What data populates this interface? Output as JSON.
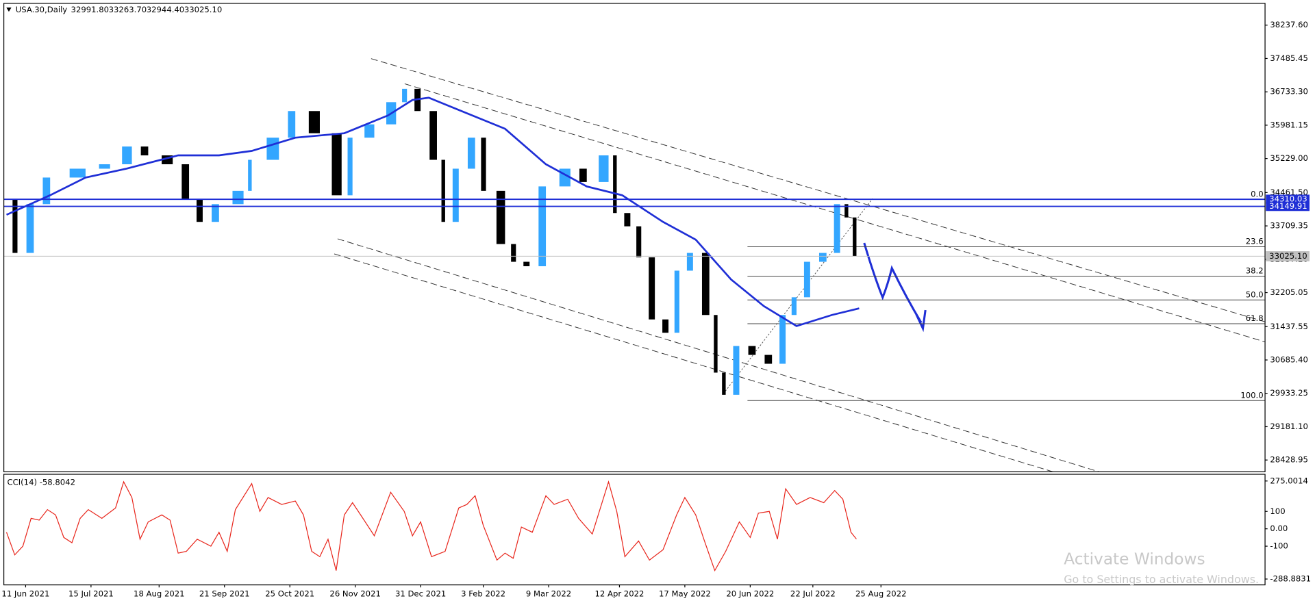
{
  "header": {
    "symbol": "USA.30,Daily",
    "open": "32991.80",
    "high": "33263.70",
    "low": "32944.40",
    "close": "33025.10"
  },
  "chart_data": {
    "type": "candlestick",
    "xlim": [
      -1,
      462
    ],
    "ylim": [
      28164,
      38729
    ],
    "xticks": [
      {
        "value": 7,
        "label": "11 Jun 2021"
      },
      {
        "value": 31,
        "label": "15 Jul 2021"
      },
      {
        "value": 56,
        "label": "18 Aug 2021"
      },
      {
        "value": 80,
        "label": "21 Sep 2021"
      },
      {
        "value": 104,
        "label": "25 Oct 2021"
      },
      {
        "value": 128,
        "label": "26 Nov 2021"
      },
      {
        "value": 152,
        "label": "31 Dec 2021"
      },
      {
        "value": 175,
        "label": "3 Feb 2022"
      },
      {
        "value": 199,
        "label": "9 Mar 2022"
      },
      {
        "value": 225,
        "label": "12 Apr 2022"
      },
      {
        "value": 249,
        "label": "17 May 2022"
      },
      {
        "value": 273,
        "label": "20 Jun 2022"
      },
      {
        "value": 296,
        "label": "22 Jul 2022"
      },
      {
        "value": 321,
        "label": "25 Aug 2022"
      }
    ],
    "yticks": [
      {
        "value": 38237.6,
        "label": "38237.60"
      },
      {
        "value": 37485.45,
        "label": "37485.45"
      },
      {
        "value": 36733.3,
        "label": "36733.30"
      },
      {
        "value": 35981.15,
        "label": "35981.15"
      },
      {
        "value": 35229,
        "label": "35229.00"
      },
      {
        "value": 34461.5,
        "label": "34461.50"
      },
      {
        "value": 33709.35,
        "label": "33709.35"
      },
      {
        "value": 32957.2,
        "label": "32957.20"
      },
      {
        "value": 32205.05,
        "label": "32205.05"
      },
      {
        "value": 31437.55,
        "label": "31437.55"
      },
      {
        "value": 30685.4,
        "label": "30685.40"
      },
      {
        "value": 29933.25,
        "label": "29933.25"
      },
      {
        "value": 29181.1,
        "label": "29181.10"
      },
      {
        "value": 28428.95,
        "label": "28428.95"
      }
    ],
    "grid": true,
    "up_color": "#33a6ff",
    "down_color": "#000000",
    "x": [
      0,
      4,
      10,
      16,
      29,
      38,
      46,
      52,
      61,
      67,
      72,
      78,
      87,
      90,
      100,
      106,
      115,
      123,
      127,
      135,
      143,
      147,
      152,
      158,
      161,
      166,
      172,
      176,
      183,
      187,
      192,
      198,
      207,
      213,
      221,
      224,
      229,
      233,
      238,
      243,
      247,
      252,
      258,
      261,
      264,
      269,
      275,
      281,
      286,
      290,
      295,
      301,
      306,
      309,
      312
    ],
    "close": [
      34300,
      33100,
      34200,
      34800,
      35000,
      35100,
      35500,
      35300,
      35100,
      34300,
      33800,
      34200,
      34500,
      35200,
      35700,
      36300,
      35800,
      34400,
      35700,
      36000,
      36500,
      36800,
      36300,
      35200,
      33800,
      35000,
      35700,
      34500,
      33300,
      32900,
      32800,
      34600,
      35000,
      34700,
      35300,
      34000,
      33700,
      33000,
      31600,
      31300,
      32700,
      33100,
      31700,
      30400,
      29900,
      31000,
      30800,
      30600,
      31700,
      32100,
      32900,
      33100,
      34200,
      33900,
      33025.1
    ],
    "ma": {
      "color": "#1f2fd6",
      "x": [
        0,
        16,
        29,
        44,
        63,
        78,
        90,
        106,
        124,
        140,
        149,
        155,
        167,
        183,
        198,
        213,
        226,
        241,
        253,
        266,
        278,
        290,
        303,
        313
      ],
      "values": [
        33960,
        34400,
        34800,
        35000,
        35300,
        35300,
        35400,
        35700,
        35800,
        36200,
        36550,
        36600,
        36300,
        35900,
        35100,
        34600,
        34400,
        33800,
        33400,
        32500,
        31900,
        31450,
        31700,
        31850
      ]
    },
    "hlines": [
      {
        "value": 34310.03,
        "label": "34310.03",
        "color": "#1f2fd6"
      },
      {
        "value": 34149.91,
        "label": "34149.91",
        "color": "#1f2fd6"
      }
    ],
    "price_label": {
      "value": 33025.1,
      "label": "33025.10"
    },
    "fib": {
      "start": 272,
      "levels": [
        {
          "label": "0.0",
          "value": 34310
        },
        {
          "label": "23.6",
          "value": 33239
        },
        {
          "label": "38.2",
          "value": 32576
        },
        {
          "label": "50.0",
          "value": 32040
        },
        {
          "label": "61.8",
          "value": 31504
        },
        {
          "label": "100.0",
          "value": 29770
        }
      ]
    },
    "indicator": {
      "type": "line",
      "title": "CCI(14) -58.8042",
      "color": "#e8261c",
      "ylim": [
        -322.6,
        313.6
      ],
      "yticks": [
        {
          "value": 275.0014,
          "label": "275.0014"
        },
        100,
        {
          "value": 0,
          "label": "0.00"
        },
        -100,
        {
          "value": -288.8831,
          "label": "-288.8831"
        }
      ],
      "x": [
        0,
        3,
        6,
        9,
        12,
        15,
        18,
        21,
        24,
        27,
        30,
        35,
        40,
        43,
        46,
        49,
        52,
        57,
        60,
        63,
        66,
        70,
        75,
        78,
        81,
        84,
        90,
        93,
        96,
        101,
        106,
        109,
        112,
        115,
        118,
        121,
        124,
        127,
        130,
        135,
        141,
        146,
        149,
        152,
        156,
        161,
        166,
        169,
        172,
        175,
        180,
        183,
        186,
        189,
        193,
        198,
        201,
        206,
        210,
        215,
        218,
        221,
        224,
        227,
        232,
        236,
        241,
        246,
        249,
        253,
        256,
        260,
        264,
        269,
        273,
        276,
        280,
        283,
        286,
        290,
        295,
        300,
        304,
        307,
        310,
        312
      ],
      "values": [
        -20,
        -150,
        -100,
        60,
        50,
        110,
        80,
        -50,
        -80,
        60,
        110,
        60,
        120,
        270,
        180,
        -60,
        40,
        80,
        50,
        -140,
        -130,
        -60,
        -100,
        -20,
        -130,
        110,
        260,
        100,
        180,
        140,
        160,
        80,
        -130,
        -160,
        -60,
        -240,
        80,
        150,
        80,
        -40,
        210,
        100,
        -40,
        40,
        -160,
        -130,
        120,
        140,
        190,
        20,
        -180,
        -140,
        -170,
        10,
        -20,
        190,
        140,
        170,
        60,
        -30,
        120,
        270,
        100,
        -160,
        -70,
        -180,
        -120,
        80,
        180,
        80,
        -60,
        -240,
        -130,
        40,
        -50,
        90,
        100,
        -60,
        230,
        140,
        180,
        150,
        220,
        170,
        -20,
        -58.8042
      ]
    }
  },
  "watermark": {
    "title": "Activate Windows",
    "subtitle": "Go to Settings to activate Windows."
  }
}
